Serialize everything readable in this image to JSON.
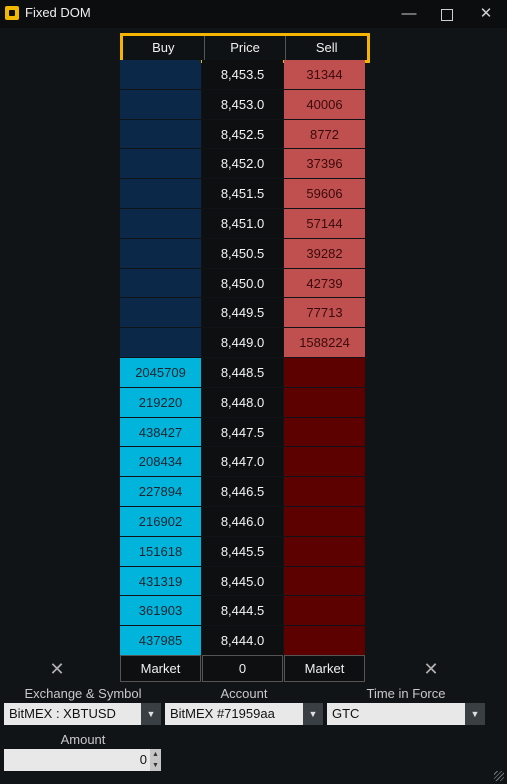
{
  "window": {
    "title": "Fixed DOM",
    "minimize": "—",
    "close": "✕"
  },
  "dom": {
    "headers": [
      "Buy",
      "Price",
      "Sell"
    ],
    "rows": [
      {
        "buy": "",
        "price": "8,453.5",
        "sell": "31344"
      },
      {
        "buy": "",
        "price": "8,453.0",
        "sell": "40006"
      },
      {
        "buy": "",
        "price": "8,452.5",
        "sell": "8772"
      },
      {
        "buy": "",
        "price": "8,452.0",
        "sell": "37396"
      },
      {
        "buy": "",
        "price": "8,451.5",
        "sell": "59606"
      },
      {
        "buy": "",
        "price": "8,451.0",
        "sell": "57144"
      },
      {
        "buy": "",
        "price": "8,450.5",
        "sell": "39282"
      },
      {
        "buy": "",
        "price": "8,450.0",
        "sell": "42739"
      },
      {
        "buy": "",
        "price": "8,449.5",
        "sell": "77713"
      },
      {
        "buy": "",
        "price": "8,449.0",
        "sell": "1588224"
      },
      {
        "buy": "2045709",
        "price": "8,448.5",
        "sell": ""
      },
      {
        "buy": "219220",
        "price": "8,448.0",
        "sell": ""
      },
      {
        "buy": "438427",
        "price": "8,447.5",
        "sell": ""
      },
      {
        "buy": "208434",
        "price": "8,447.0",
        "sell": ""
      },
      {
        "buy": "227894",
        "price": "8,446.5",
        "sell": ""
      },
      {
        "buy": "216902",
        "price": "8,446.0",
        "sell": ""
      },
      {
        "buy": "151618",
        "price": "8,445.5",
        "sell": ""
      },
      {
        "buy": "431319",
        "price": "8,445.0",
        "sell": ""
      },
      {
        "buy": "361903",
        "price": "8,444.5",
        "sell": ""
      },
      {
        "buy": "437985",
        "price": "8,444.0",
        "sell": ""
      }
    ],
    "market_buy": "Market",
    "position": "0",
    "market_sell": "Market",
    "cancel_icon": "✕"
  },
  "colors": {
    "buy_empty": "#0c2849",
    "buy_filled": "#00b4dc",
    "sell_filled": "#c05050",
    "sell_empty": "#5c0000",
    "header_outline": "#f4b400"
  },
  "form": {
    "exchange_label": "Exchange & Symbol",
    "exchange_value": "BitMEX : XBTUSD",
    "account_label": "Account",
    "account_value": "BitMEX #71959aa",
    "tif_label": "Time in Force",
    "tif_value": "GTC",
    "amount_label": "Amount",
    "amount_value": "0"
  }
}
